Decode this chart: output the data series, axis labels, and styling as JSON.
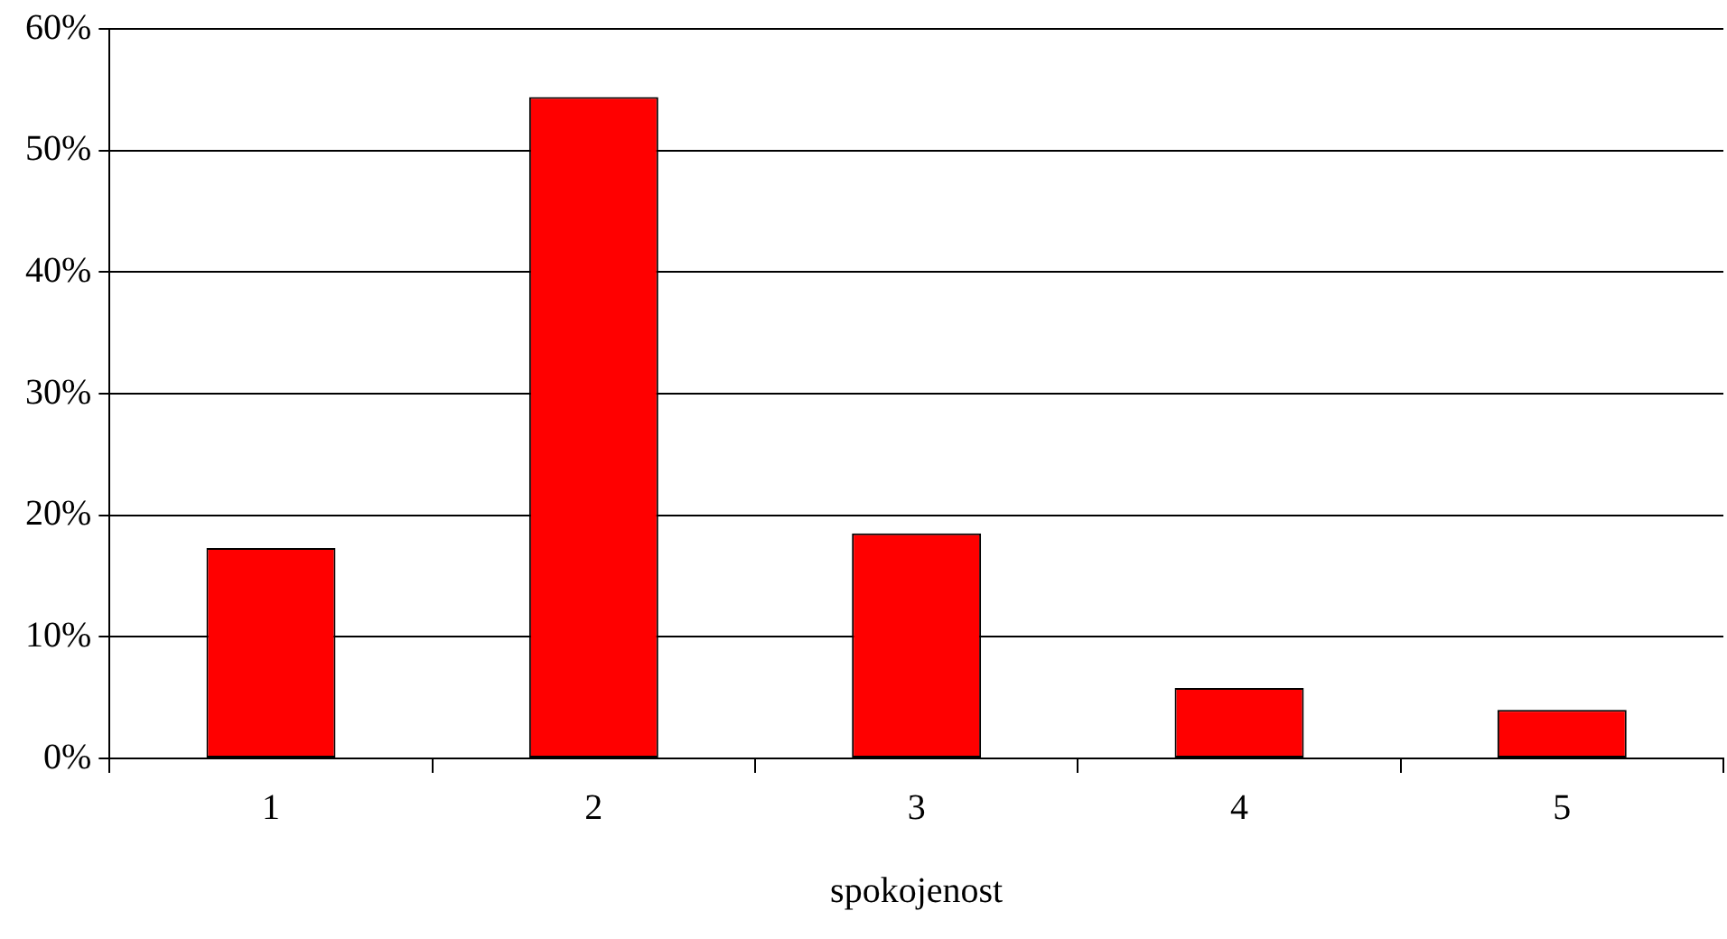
{
  "chart_data": {
    "type": "bar",
    "xlabel": "spokojenost",
    "categories": [
      "1",
      "2",
      "3",
      "4",
      "5"
    ],
    "values": [
      17.3,
      54.4,
      18.5,
      5.8,
      4.0
    ],
    "color": "#ff0000",
    "ylim": [
      0,
      60
    ],
    "yticks": [
      {
        "value": 0,
        "label": "0%"
      },
      {
        "value": 10,
        "label": "10%"
      },
      {
        "value": 20,
        "label": "20%"
      },
      {
        "value": 30,
        "label": "30%"
      },
      {
        "value": 40,
        "label": "40%"
      },
      {
        "value": 50,
        "label": "50%"
      },
      {
        "value": 60,
        "label": "60%"
      }
    ],
    "grid": "y",
    "legend": false
  }
}
